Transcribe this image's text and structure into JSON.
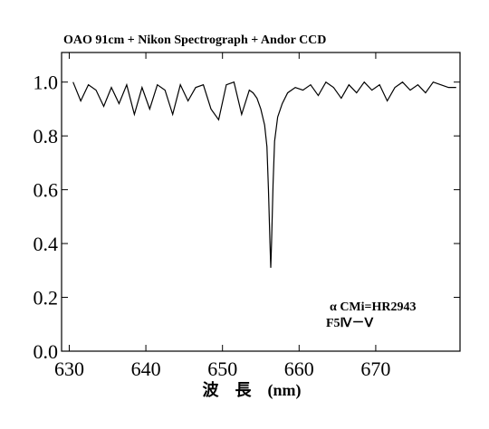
{
  "chart_data": {
    "type": "line",
    "title": "OAO 91cm + Nikon Spectrograph + Andor CCD",
    "xlabel": "波　長　(nm)",
    "annotations": [
      "α CMi=HR2943",
      "F5Ⅳ－Ⅴ"
    ],
    "color": "#000000",
    "x": [
      630.5,
      631.5,
      632.5,
      633.5,
      634.5,
      635.5,
      636.5,
      637.5,
      638.5,
      639.5,
      640.5,
      641.5,
      642.5,
      643.5,
      644.5,
      645.5,
      646.5,
      647.5,
      648.5,
      649.5,
      650.5,
      651.5,
      652.5,
      653.5,
      654,
      654.5,
      655,
      655.5,
      655.8,
      656.0,
      656.2,
      656.3,
      656.4,
      656.6,
      656.8,
      657.2,
      657.8,
      658.5,
      659.5,
      660.5,
      661.5,
      662.5,
      663.5,
      664.5,
      665.5,
      666.5,
      667.5,
      668.5,
      669.5,
      670.5,
      671.5,
      672.5,
      673.5,
      674.5,
      675.5,
      676.5,
      677.5,
      678.5,
      679.5,
      680.5
    ],
    "values": [
      1.0,
      0.93,
      0.99,
      0.97,
      0.91,
      0.98,
      0.92,
      0.99,
      0.88,
      0.98,
      0.9,
      0.99,
      0.97,
      0.88,
      0.99,
      0.93,
      0.98,
      0.99,
      0.9,
      0.86,
      0.99,
      1.0,
      0.88,
      0.97,
      0.96,
      0.94,
      0.9,
      0.84,
      0.76,
      0.6,
      0.4,
      0.31,
      0.4,
      0.62,
      0.78,
      0.87,
      0.92,
      0.96,
      0.98,
      0.97,
      0.99,
      0.95,
      1.0,
      0.98,
      0.94,
      0.99,
      0.96,
      1.0,
      0.97,
      0.99,
      0.93,
      0.98,
      1.0,
      0.97,
      0.99,
      0.96,
      1.0,
      0.99,
      0.98,
      0.98
    ],
    "xlim": [
      629,
      681
    ],
    "ylim": [
      0,
      1.11
    ],
    "xticks": [
      630,
      640,
      650,
      660,
      670
    ],
    "yticks": [
      {
        "value": 0,
        "label": "0.0"
      },
      0.2,
      0.4,
      0.6,
      0.8,
      {
        "value": 1,
        "label": "1.0"
      }
    ]
  }
}
